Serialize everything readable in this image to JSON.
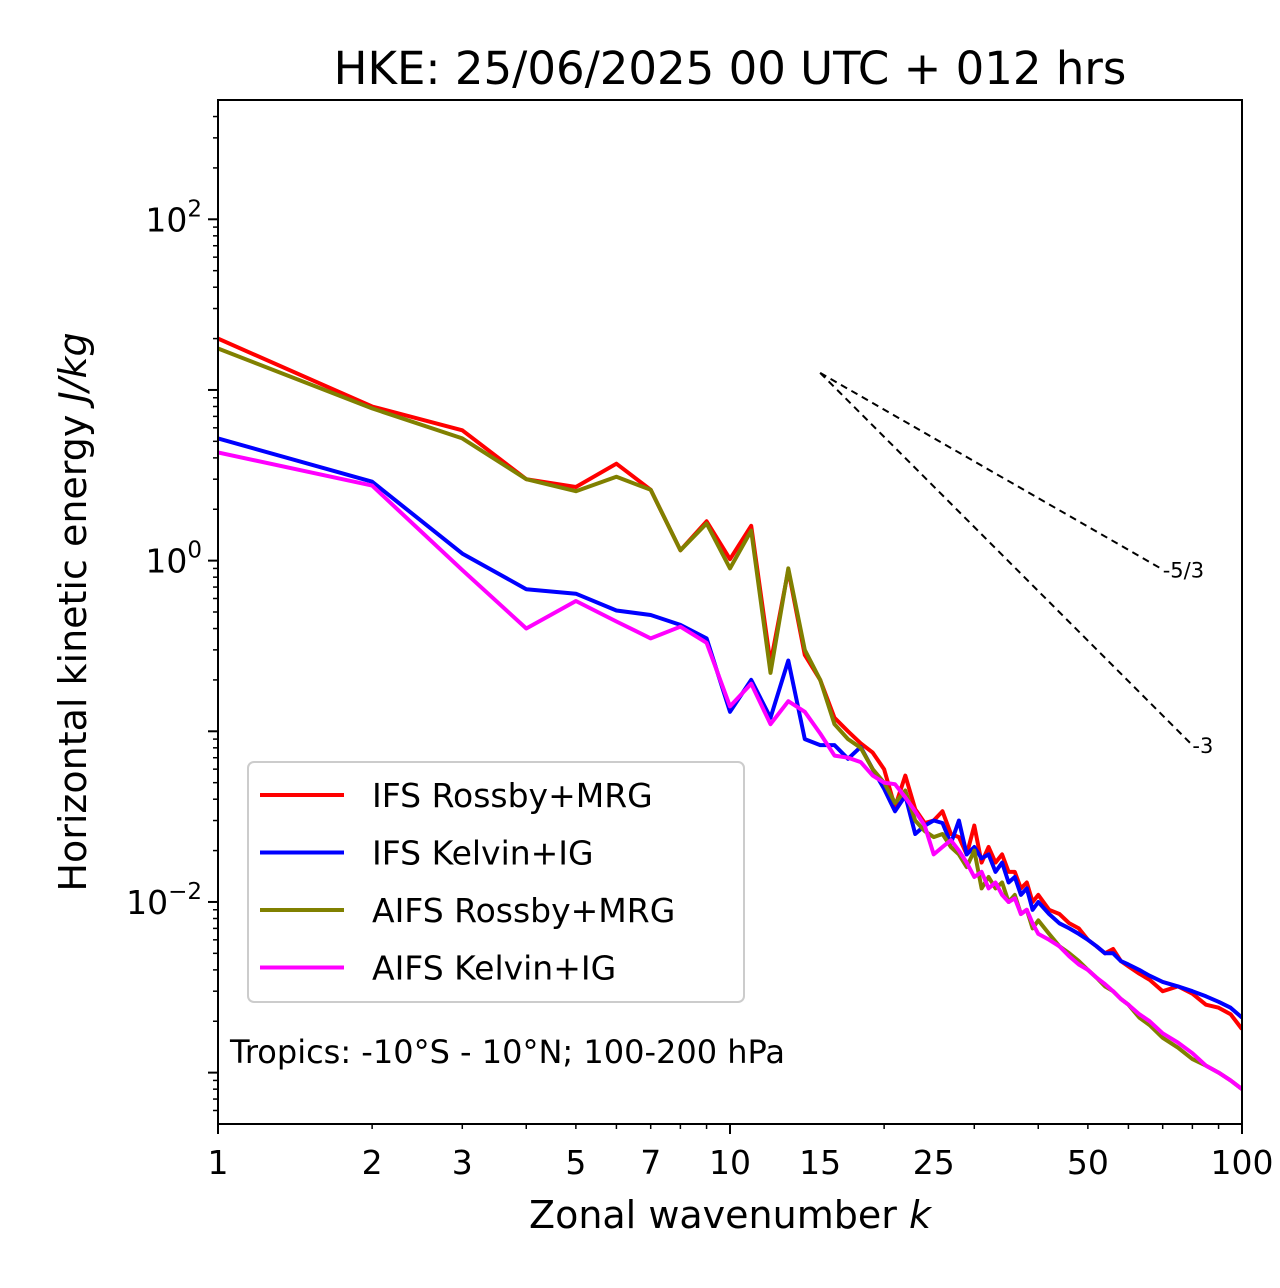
{
  "chart_data": {
    "type": "line",
    "title": "HKE: 25/06/2025 00 UTC + 012 hrs",
    "xlabel": "Zonal wavenumber",
    "xlabel_var": "k",
    "ylabel": "Horizontal kinetic energy",
    "ylabel_unit": "J/kg",
    "x_scale": "log",
    "y_scale": "log",
    "xlim": [
      1,
      100
    ],
    "ylim": [
      0.0005,
      500
    ],
    "x_ticks": [
      {
        "value": 1,
        "label": "1"
      },
      {
        "value": 2,
        "label": "2"
      },
      {
        "value": 3,
        "label": "3"
      },
      {
        "value": 5,
        "label": "5"
      },
      {
        "value": 7,
        "label": "7"
      },
      {
        "value": 10,
        "label": "10"
      },
      {
        "value": 15,
        "label": "15"
      },
      {
        "value": 25,
        "label": "25"
      },
      {
        "value": 50,
        "label": "50"
      },
      {
        "value": 100,
        "label": "100"
      }
    ],
    "y_ticks": [
      {
        "value": 100,
        "base": "10",
        "exp": "2"
      },
      {
        "value": 1,
        "base": "10",
        "exp": "0"
      },
      {
        "value": 0.01,
        "base": "10",
        "exp": "−2"
      }
    ],
    "annotation": "Tropics: -10°S - 10°N; 100-200 hPa",
    "legend_position": "lower-left",
    "reference_lines": [
      {
        "label": "-5/3",
        "slope": -1.6667,
        "x": [
          15,
          70
        ],
        "y": [
          12.59,
          0.8866
        ]
      },
      {
        "label": "-3",
        "slope": -3,
        "x": [
          15,
          80
        ],
        "y": [
          12.59,
          0.0829
        ]
      }
    ],
    "series": [
      {
        "name": "IFS Rossby+MRG",
        "color": "#ff0000",
        "x": [
          1,
          2,
          3,
          4,
          5,
          6,
          7,
          8,
          9,
          10,
          11,
          12,
          13,
          14,
          15,
          16,
          17,
          18,
          19,
          20,
          21,
          22,
          23,
          24,
          25,
          26,
          27,
          28,
          29,
          30,
          31,
          32,
          33,
          34,
          35,
          36,
          37,
          38,
          39,
          40,
          42,
          44,
          46,
          48,
          50,
          52,
          54,
          56,
          58,
          60,
          63,
          66,
          70,
          75,
          80,
          85,
          90,
          95,
          100
        ],
        "y": [
          20,
          8,
          5.8,
          3,
          2.7,
          3.7,
          2.6,
          1.15,
          1.7,
          1.02,
          1.6,
          0.25,
          0.88,
          0.28,
          0.2,
          0.12,
          0.1,
          0.085,
          0.075,
          0.06,
          0.036,
          0.055,
          0.035,
          0.029,
          0.03,
          0.034,
          0.025,
          0.024,
          0.019,
          0.028,
          0.017,
          0.021,
          0.017,
          0.019,
          0.015,
          0.015,
          0.012,
          0.013,
          0.01,
          0.011,
          0.009,
          0.0085,
          0.0075,
          0.007,
          0.006,
          0.0055,
          0.005,
          0.0053,
          0.0045,
          0.0042,
          0.0038,
          0.0035,
          0.003,
          0.0032,
          0.0029,
          0.0025,
          0.0024,
          0.0022,
          0.0018
        ]
      },
      {
        "name": "IFS Kelvin+IG",
        "color": "#0000ff",
        "x": [
          1,
          2,
          3,
          4,
          5,
          6,
          7,
          8,
          9,
          10,
          11,
          12,
          13,
          14,
          15,
          16,
          17,
          18,
          19,
          20,
          21,
          22,
          23,
          24,
          25,
          26,
          27,
          28,
          29,
          30,
          31,
          32,
          33,
          34,
          35,
          36,
          37,
          38,
          39,
          40,
          42,
          44,
          46,
          48,
          50,
          52,
          54,
          56,
          58,
          60,
          63,
          66,
          70,
          75,
          80,
          85,
          90,
          95,
          100
        ],
        "y": [
          5.2,
          2.9,
          1.1,
          0.68,
          0.64,
          0.51,
          0.48,
          0.42,
          0.35,
          0.13,
          0.2,
          0.12,
          0.26,
          0.09,
          0.083,
          0.083,
          0.069,
          0.081,
          0.06,
          0.046,
          0.034,
          0.042,
          0.025,
          0.028,
          0.03,
          0.029,
          0.022,
          0.03,
          0.019,
          0.021,
          0.018,
          0.019,
          0.015,
          0.017,
          0.013,
          0.014,
          0.011,
          0.012,
          0.009,
          0.01,
          0.0085,
          0.0075,
          0.007,
          0.0065,
          0.006,
          0.0055,
          0.005,
          0.005,
          0.0045,
          0.0043,
          0.004,
          0.0037,
          0.0034,
          0.0032,
          0.003,
          0.0028,
          0.0026,
          0.0024,
          0.0021
        ]
      },
      {
        "name": "AIFS Rossby+MRG",
        "color": "#808000",
        "x": [
          1,
          2,
          3,
          4,
          5,
          6,
          7,
          8,
          9,
          10,
          11,
          12,
          13,
          14,
          15,
          16,
          17,
          18,
          19,
          20,
          21,
          22,
          23,
          24,
          25,
          26,
          27,
          28,
          29,
          30,
          31,
          32,
          33,
          34,
          35,
          36,
          37,
          38,
          39,
          40,
          42,
          44,
          46,
          48,
          50,
          52,
          54,
          56,
          58,
          60,
          63,
          66,
          70,
          75,
          80,
          85,
          90,
          95,
          100
        ],
        "y": [
          17.5,
          7.8,
          5.2,
          3,
          2.55,
          3.1,
          2.6,
          1.15,
          1.65,
          0.9,
          1.5,
          0.22,
          0.9,
          0.3,
          0.2,
          0.11,
          0.09,
          0.08,
          0.06,
          0.05,
          0.038,
          0.045,
          0.03,
          0.026,
          0.024,
          0.025,
          0.021,
          0.019,
          0.016,
          0.02,
          0.012,
          0.014,
          0.012,
          0.013,
          0.01,
          0.011,
          0.0085,
          0.009,
          0.007,
          0.0078,
          0.0065,
          0.0055,
          0.005,
          0.0045,
          0.004,
          0.0036,
          0.0032,
          0.003,
          0.0027,
          0.0025,
          0.0021,
          0.0019,
          0.0016,
          0.0014,
          0.0012,
          0.0011,
          0.001,
          0.0009,
          0.0008
        ]
      },
      {
        "name": "AIFS Kelvin+IG",
        "color": "#ff00ff",
        "x": [
          1,
          2,
          3,
          4,
          5,
          6,
          7,
          8,
          9,
          10,
          11,
          12,
          13,
          14,
          15,
          16,
          17,
          18,
          19,
          20,
          21,
          22,
          23,
          24,
          25,
          26,
          27,
          28,
          29,
          30,
          31,
          32,
          33,
          34,
          35,
          36,
          37,
          38,
          39,
          40,
          42,
          44,
          46,
          48,
          50,
          52,
          54,
          56,
          58,
          60,
          63,
          66,
          70,
          75,
          80,
          85,
          90,
          95,
          100
        ],
        "y": [
          4.3,
          2.75,
          0.88,
          0.4,
          0.58,
          0.44,
          0.35,
          0.41,
          0.33,
          0.14,
          0.19,
          0.11,
          0.15,
          0.13,
          0.097,
          0.072,
          0.07,
          0.066,
          0.055,
          0.05,
          0.049,
          0.041,
          0.034,
          0.028,
          0.019,
          0.021,
          0.023,
          0.02,
          0.017,
          0.014,
          0.015,
          0.012,
          0.013,
          0.011,
          0.01,
          0.0105,
          0.0085,
          0.009,
          0.0075,
          0.0065,
          0.006,
          0.0055,
          0.0048,
          0.0043,
          0.004,
          0.0036,
          0.0033,
          0.003,
          0.0027,
          0.0025,
          0.0022,
          0.002,
          0.0017,
          0.0015,
          0.0013,
          0.0011,
          0.001,
          0.0009,
          0.0008
        ]
      }
    ]
  }
}
